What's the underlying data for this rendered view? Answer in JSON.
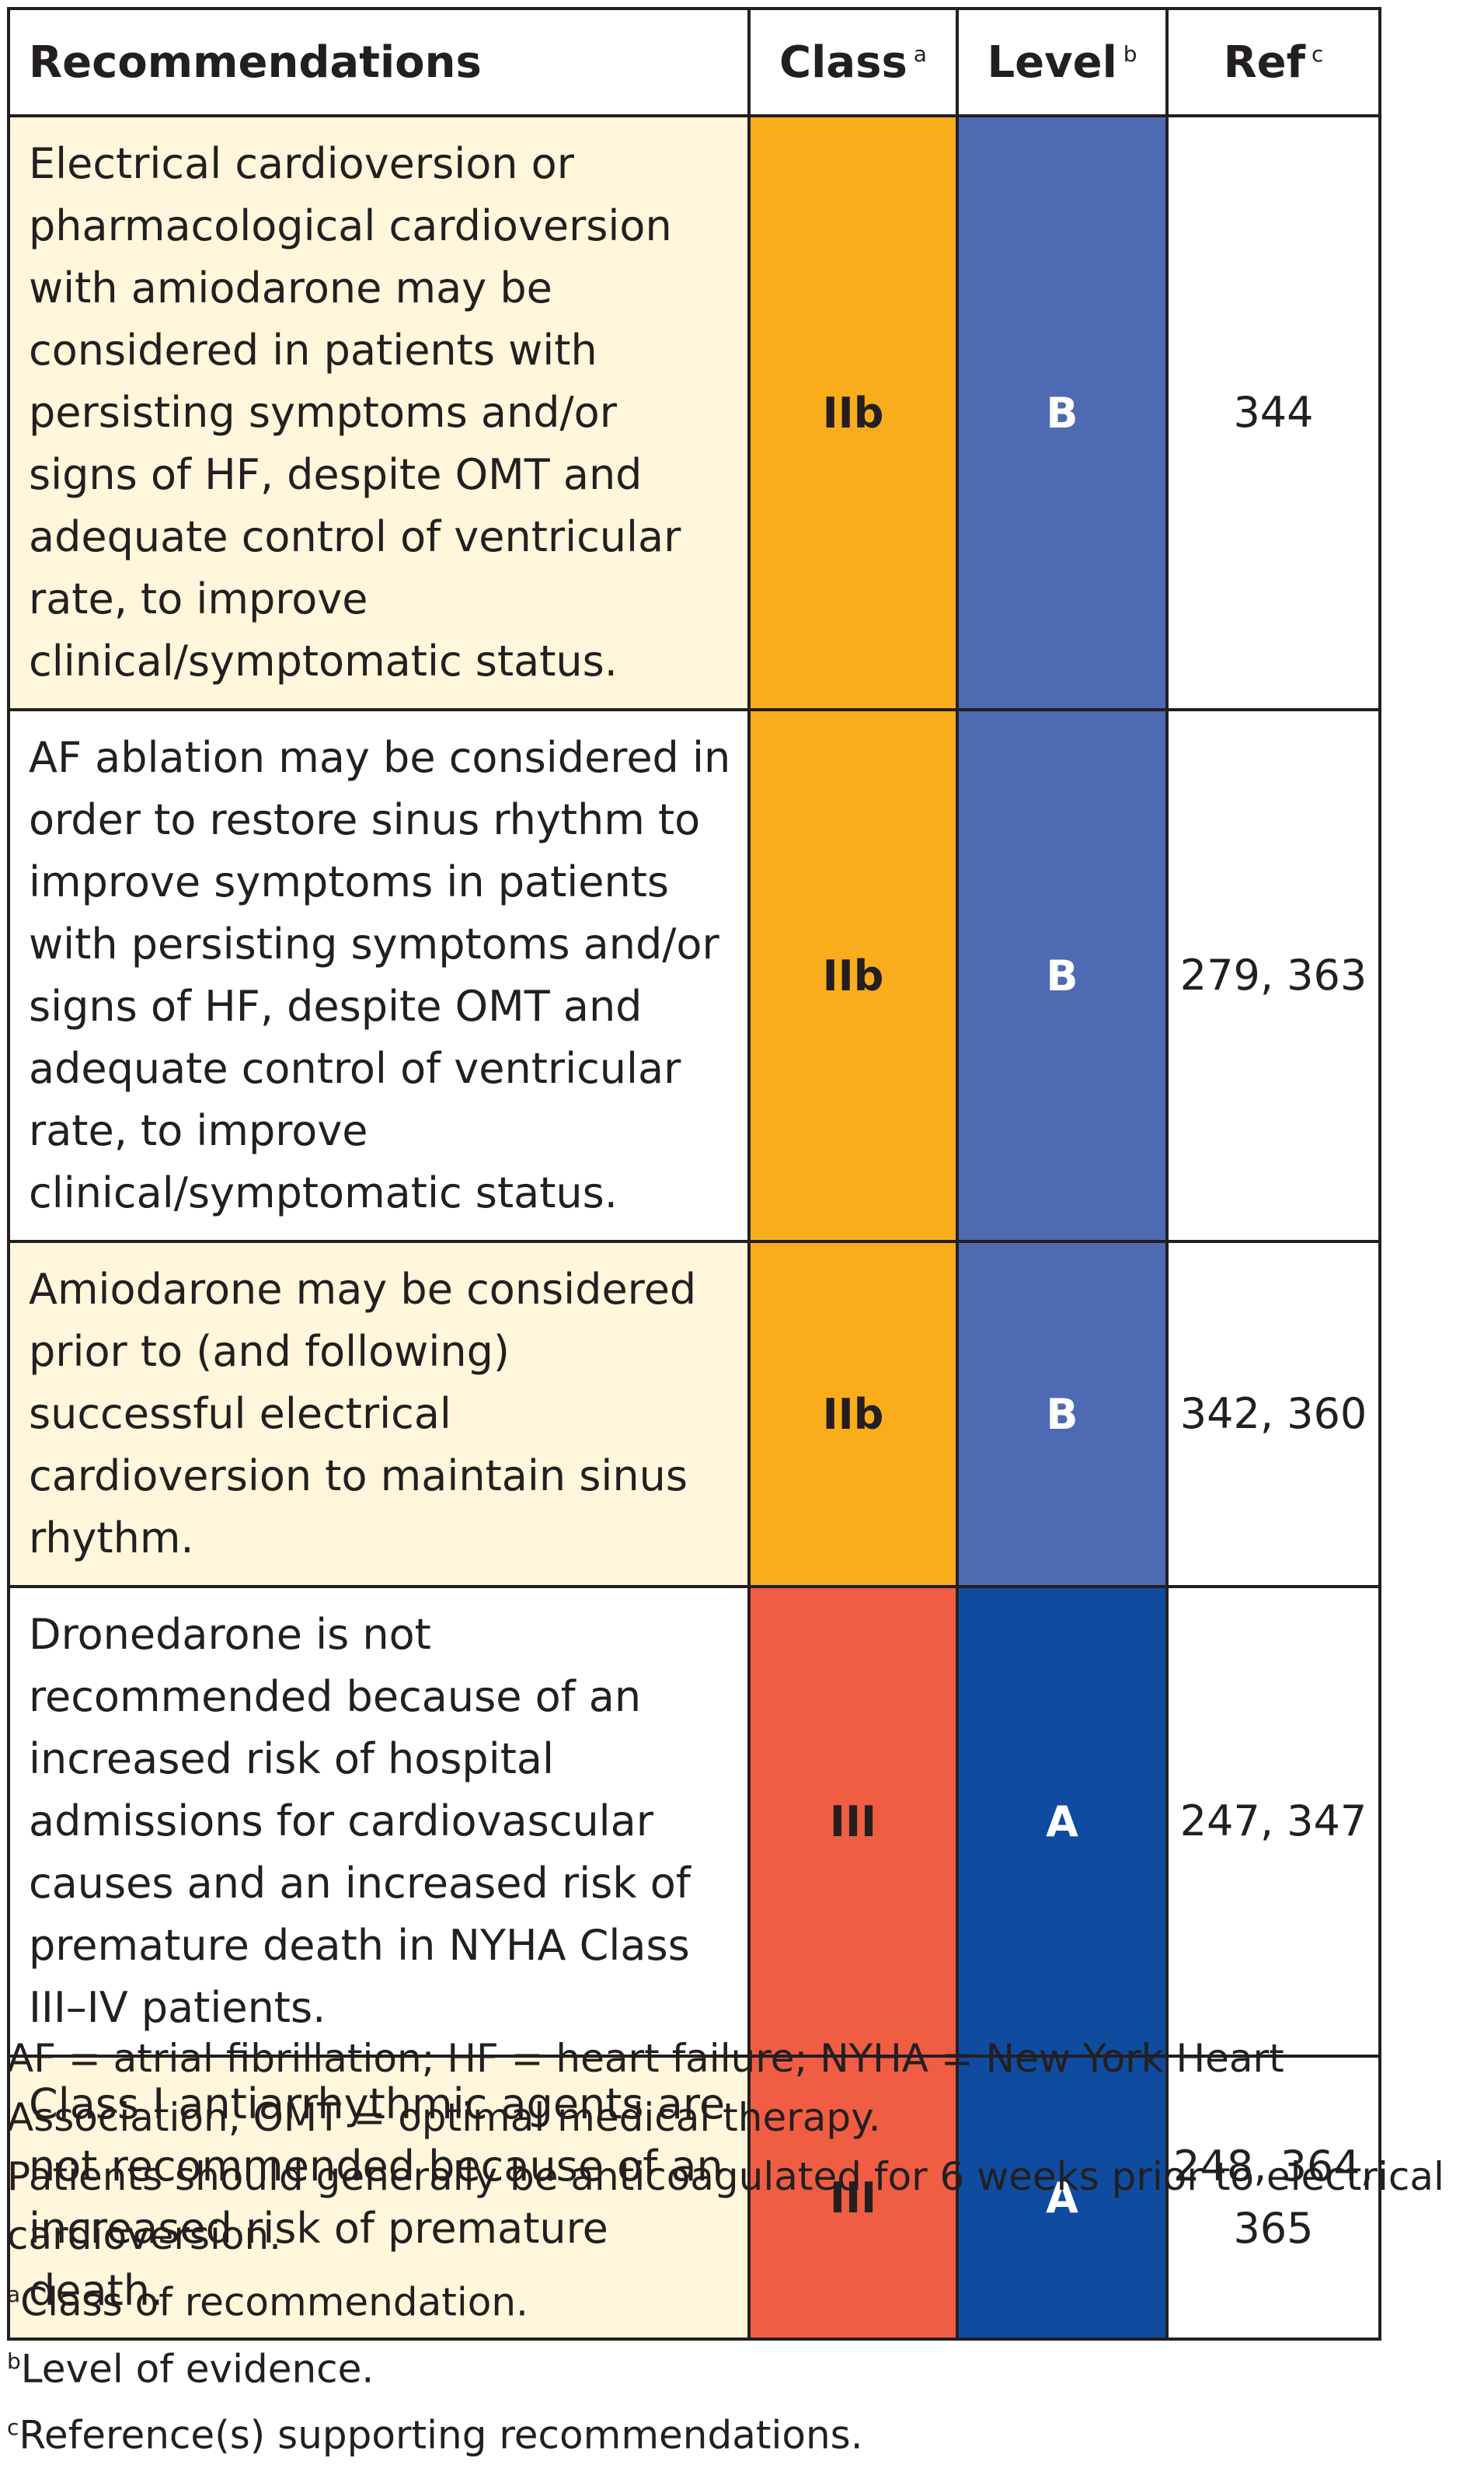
{
  "colors": {
    "class_iib": "#f9ad1c",
    "class_iii": "#f05d43",
    "level_b": "#4e6ab2",
    "level_a": "#0f4c9f",
    "row_tint": "#fff6db",
    "border": "#231f20"
  },
  "header": {
    "recommendations": "Recommendations",
    "class": "Class",
    "class_sup": "a",
    "level": "Level",
    "level_sup": "b",
    "ref": "Ref",
    "ref_sup": "c"
  },
  "rows": [
    {
      "text": "Electrical cardioversion or pharmacological cardioversion with amiodarone may be considered in patients with persisting symptoms and/or signs of HF, despite OMT and adequate control of ventricular rate, to improve clinical/symptomatic status.",
      "class": "IIb",
      "level": "B",
      "ref": "344"
    },
    {
      "text": "AF ablation may be considered in order to restore sinus rhythm to improve symptoms in patients with persisting symptoms and/or signs of HF, despite OMT and adequate control of ventricular rate, to improve clinical/symptomatic status.",
      "class": "IIb",
      "level": "B",
      "ref": "279, 363"
    },
    {
      "text": "Amiodarone may be considered prior to (and following) successful electrical cardioversion to maintain sinus rhythm.",
      "class": "IIb",
      "level": "B",
      "ref": "342, 360"
    },
    {
      "text": "Dronedarone is not recommended because of an increased risk of hospital admissions for cardiovascular causes and an increased risk of premature death in NYHA Class III–IV patients.",
      "class": "III",
      "level": "A",
      "ref": "247, 347"
    },
    {
      "text": "Class I antiarrhythmic agents are not recommended because of an increased risk of premature death.",
      "class": "III",
      "level": "A",
      "ref": "248, 364, 365"
    }
  ],
  "footnotes": {
    "abbreviations": "AF = atrial fibrillation; HF = heart failure; NYHA = New York Heart Association, OMT = optimal medical therapy.",
    "anticoagulation": "Patients should generally be anticoagulated for 6 weeks prior to electrical cardioversion.",
    "a_mark": "a",
    "a_text": "Class of recommendation.",
    "b_mark": "b",
    "b_text": "Level of evidence.",
    "c_mark": "c",
    "c_text": "Reference(s) supporting recommendations."
  }
}
